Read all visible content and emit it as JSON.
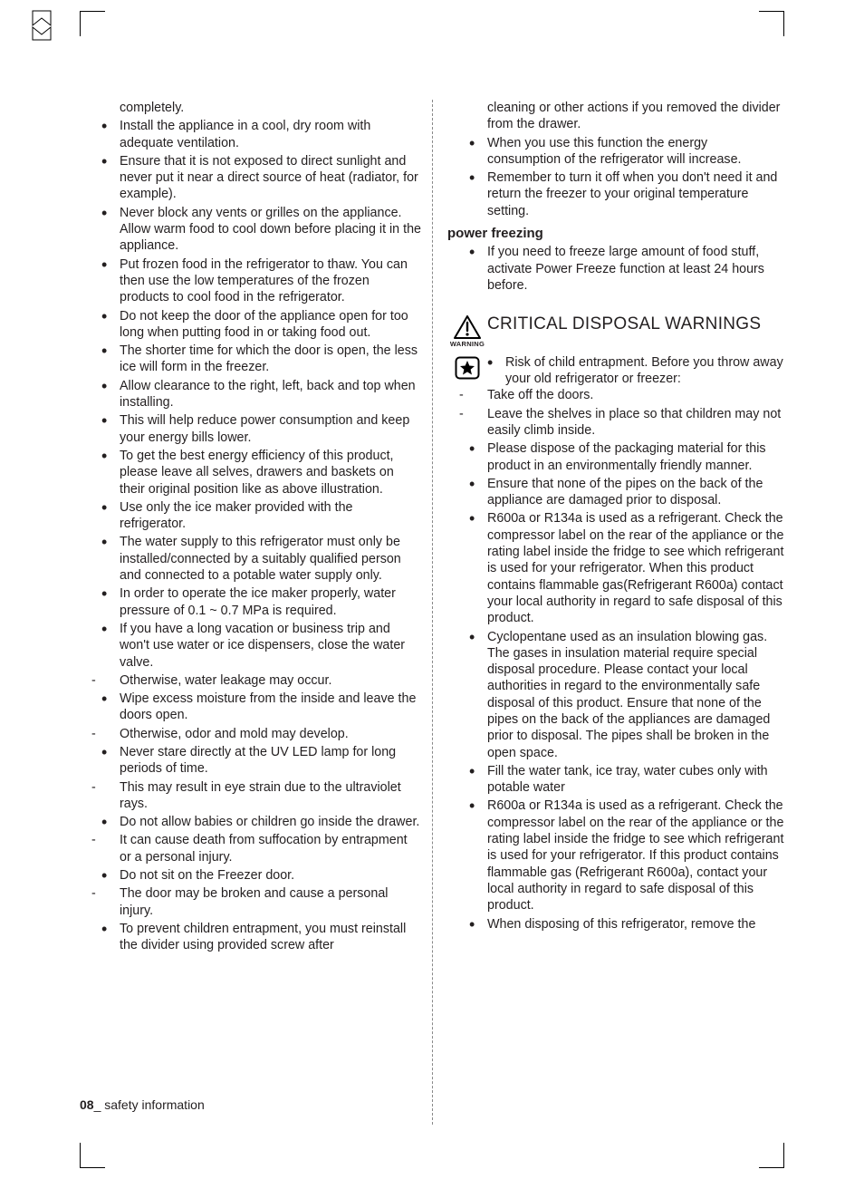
{
  "page": {
    "number": "08",
    "footer_label": "_ safety information"
  },
  "left": {
    "orphan": "completely.",
    "items": [
      {
        "t": "b",
        "text": "Install the appliance in a cool, dry room with adequate ventilation."
      },
      {
        "t": "b",
        "text": "Ensure that it is not exposed to direct sunlight and never put it near a direct source of heat (radiator, for example)."
      },
      {
        "t": "b",
        "text": "Never block any vents or grilles on the appliance. Allow warm food to cool down before placing it in the appliance."
      },
      {
        "t": "b",
        "text": "Put frozen food in the refrigerator to thaw. You can then use the low temperatures of the frozen products to cool food in the refrigerator."
      },
      {
        "t": "b",
        "text": "Do not keep the door of the appliance open for too long when putting food in or taking food out."
      },
      {
        "t": "b",
        "text": "The shorter time for which the door is open, the less ice will form in the freezer."
      },
      {
        "t": "b",
        "text": "Allow clearance to the right, left, back and top when installing."
      },
      {
        "t": "b",
        "text": "This will help reduce power consumption and keep your energy bills lower."
      },
      {
        "t": "b",
        "text": "To get the best energy efficiency of this product, please leave all selves, drawers and baskets on their original position like as above illustration."
      },
      {
        "t": "b",
        "text": "Use only the ice maker provided with the refrigerator."
      },
      {
        "t": "b",
        "text": " The water supply to this refrigerator must only be installed/connected by a suitably qualified person and connected to a potable water supply only."
      },
      {
        "t": "b",
        "text": "In order to operate the ice maker properly, water pressure of 0.1 ~ 0.7  MPa  is required."
      },
      {
        "t": "b",
        "text": "If you have a long vacation or business trip and won't use water or ice dispensers, close the water valve."
      },
      {
        "t": "d",
        "text": "Otherwise, water leakage may occur."
      },
      {
        "t": "b",
        "text": "Wipe excess moisture from the inside and leave the doors open."
      },
      {
        "t": "d",
        "text": "Otherwise, odor and mold may develop."
      },
      {
        "t": "b",
        "text": "Never stare directly at the UV LED lamp for long periods of time."
      },
      {
        "t": "d",
        "text": "This may result in eye strain due to the ultraviolet rays."
      },
      {
        "t": "b",
        "text": "Do not allow babies or children go inside the drawer."
      },
      {
        "t": "d",
        "text": "It can cause death from suffocation by entrapment or a personal injury."
      },
      {
        "t": "b",
        "text": "Do not sit on the Freezer door."
      },
      {
        "t": "d",
        "text": "The door may be broken and cause a personal injury."
      },
      {
        "t": "b",
        "text": "To prevent children entrapment, you must reinstall the divider using provided screw after"
      }
    ]
  },
  "right": {
    "orphan": "cleaning or other actions if you removed the divider from the drawer.",
    "top_items": [
      {
        "t": "b",
        "text": "When you use this function the energy consumption of the refrigerator will increase."
      },
      {
        "t": "b",
        "text": "Remember to turn it off when you don't need it and return the freezer to your original temperature setting."
      }
    ],
    "subhead": "power freezing",
    "pf_items": [
      {
        "t": "b",
        "text": "If you need to freeze large amount of food stuff, activate Power Freeze function at least 24 hours before."
      }
    ],
    "section": {
      "warning_label": "WARNING",
      "title": "CRITICAL DISPOSAL WARNINGS"
    },
    "first_after_icon": "Risk of child entrapment. Before you throw away your old refrigerator or freezer:",
    "disposal_items": [
      {
        "t": "d",
        "text": "Take off the doors."
      },
      {
        "t": "d",
        "text": "Leave the shelves in place so that children may not easily climb inside."
      },
      {
        "t": "b",
        "text": "Please dispose of the packaging material for this product in an environmentally friendly manner."
      },
      {
        "t": "b",
        "text": "Ensure that none of the pipes on the back of the appliance are damaged prior to disposal."
      },
      {
        "t": "b",
        "text": "R600a or R134a is used as a refrigerant. Check the compressor label on the rear of the appliance or the rating label inside the fridge to see which refrigerant is used for your refrigerator. When this product contains flammable gas(Refrigerant R600a) contact your local authority in regard to safe disposal of this product."
      },
      {
        "t": "b",
        "text": " Cyclopentane used as an insulation blowing gas. The gases in insulation material require special disposal procedure. Please contact your local authorities in regard to the environmentally safe disposal of this product. Ensure that none of the pipes on the back of the appliances are damaged prior to disposal. The pipes shall be broken in the open space."
      },
      {
        "t": "b",
        "text": "Fill the water tank, ice tray, water cubes only with potable water"
      },
      {
        "t": "b",
        "text": "R600a or R134a is used as a refrigerant. Check the compressor label on the rear of the appliance or the rating label inside the fridge to see which refrigerant is used for your refrigerator. If this product contains flammable gas (Refrigerant R600a), contact your local authority in regard to safe disposal of this product."
      },
      {
        "t": "b",
        "text": "When disposing of this refrigerator, remove the"
      }
    ]
  }
}
